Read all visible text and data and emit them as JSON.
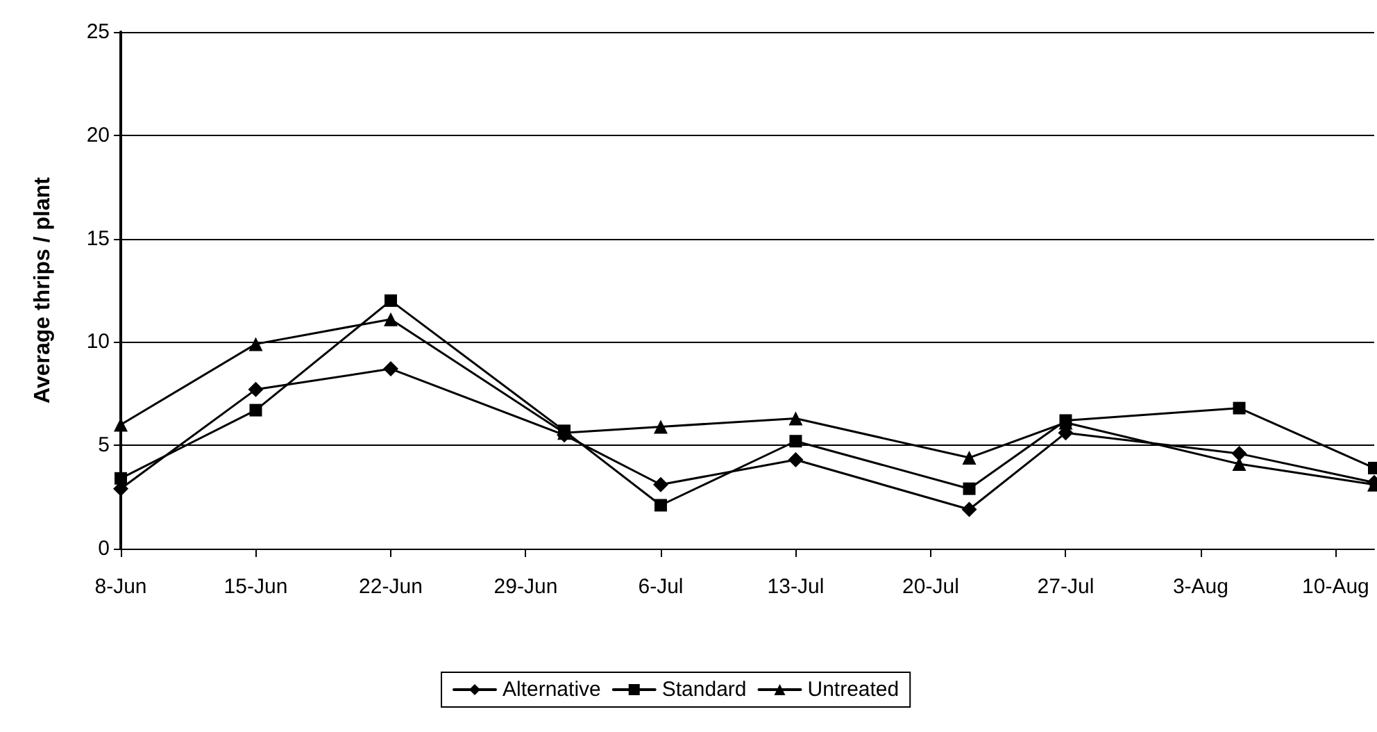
{
  "chart_data": {
    "type": "line",
    "ylabel": "Average thrips / plant",
    "x": [
      "--06-08",
      "--06-15",
      "--06-22",
      "--07-01",
      "--07-06",
      "--07-13",
      "--07-22",
      "--07-27",
      "--08-05",
      "--08-12"
    ],
    "series": [
      {
        "name": "Alternative",
        "color": "#000000",
        "marker": "diamond",
        "values": [
          2.9,
          7.7,
          8.7,
          5.5,
          3.1,
          4.3,
          1.9,
          5.6,
          4.6,
          3.2
        ]
      },
      {
        "name": "Standard",
        "color": "#000000",
        "marker": "square",
        "values": [
          3.4,
          6.7,
          12.0,
          5.7,
          2.1,
          5.2,
          2.9,
          6.2,
          6.8,
          3.9
        ]
      },
      {
        "name": "Untreated",
        "color": "#000000",
        "marker": "triangle",
        "values": [
          6.0,
          9.9,
          11.1,
          5.6,
          5.9,
          6.3,
          4.4,
          6.1,
          4.1,
          3.1
        ]
      }
    ],
    "xlim": [
      "--06-08",
      "--08-12"
    ],
    "xticks": [
      {
        "value": "--06-08",
        "label": "8-Jun"
      },
      {
        "value": "--06-15",
        "label": "15-Jun"
      },
      {
        "value": "--06-22",
        "label": "22-Jun"
      },
      {
        "value": "--06-29",
        "label": "29-Jun"
      },
      {
        "value": "--07-06",
        "label": "6-Jul"
      },
      {
        "value": "--07-13",
        "label": "13-Jul"
      },
      {
        "value": "--07-20",
        "label": "20-Jul"
      },
      {
        "value": "--07-27",
        "label": "27-Jul"
      },
      {
        "value": "--08-03",
        "label": "3-Aug"
      },
      {
        "value": "--08-10",
        "label": "10-Aug"
      }
    ],
    "ylim": [
      0,
      25
    ],
    "yticks": [
      0,
      5,
      10,
      15,
      20,
      25
    ],
    "grid": "y",
    "legend": "bottom",
    "line_style": "solid"
  }
}
